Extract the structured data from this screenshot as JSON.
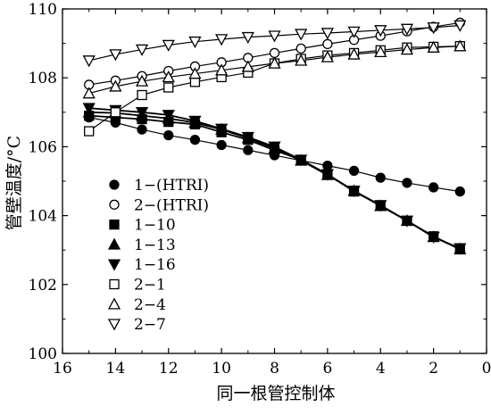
{
  "chart_data": {
    "type": "line",
    "title": "",
    "xlabel": "同一根管控制体",
    "ylabel": "管壁温度/°C",
    "xlim": [
      16,
      0
    ],
    "x_reversed": true,
    "ylim": [
      100,
      110
    ],
    "xticks": [
      16,
      14,
      12,
      10,
      8,
      6,
      4,
      2,
      0
    ],
    "yticks": [
      100,
      102,
      104,
      106,
      108,
      110
    ],
    "grid": false,
    "legend_position": "left-middle",
    "x": [
      15,
      14,
      13,
      12,
      11,
      10,
      9,
      8,
      7,
      6,
      5,
      4,
      3,
      2,
      1
    ],
    "series": [
      {
        "name": "1−(HTRI)",
        "marker": "filled-circle",
        "values": [
          106.85,
          106.7,
          106.5,
          106.33,
          106.2,
          106.05,
          105.9,
          105.75,
          105.6,
          105.45,
          105.3,
          105.1,
          104.95,
          104.82,
          104.7
        ]
      },
      {
        "name": "2−(HTRI)",
        "marker": "open-circle",
        "values": [
          107.8,
          107.92,
          108.05,
          108.2,
          108.33,
          108.45,
          108.58,
          108.72,
          108.85,
          108.98,
          109.1,
          109.22,
          109.35,
          109.48,
          109.6
        ]
      },
      {
        "name": "1−10",
        "marker": "filled-square",
        "values": [
          106.9,
          106.85,
          106.8,
          106.72,
          106.65,
          106.42,
          106.2,
          105.9,
          105.62,
          105.2,
          104.7,
          104.3,
          103.85,
          103.4,
          103.02
        ]
      },
      {
        "name": "1−13",
        "marker": "filled-triangle-up",
        "values": [
          107.0,
          106.98,
          106.9,
          106.82,
          106.7,
          106.5,
          106.25,
          105.95,
          105.6,
          105.18,
          104.72,
          104.28,
          103.85,
          103.38,
          103.03
        ]
      },
      {
        "name": "1−16",
        "marker": "filled-triangle-down",
        "values": [
          107.12,
          107.06,
          107.0,
          106.92,
          106.75,
          106.52,
          106.28,
          106.0,
          105.62,
          105.2,
          104.72,
          104.3,
          103.85,
          103.38,
          103.05
        ]
      },
      {
        "name": "2−1",
        "marker": "open-square",
        "values": [
          106.45,
          107.0,
          107.5,
          107.72,
          107.88,
          108.02,
          108.15,
          108.42,
          108.55,
          108.65,
          108.72,
          108.8,
          108.88,
          108.9,
          108.92
        ]
      },
      {
        "name": "2−4",
        "marker": "open-triangle-up",
        "values": [
          107.55,
          107.75,
          107.9,
          108.02,
          108.12,
          108.22,
          108.32,
          108.42,
          108.5,
          108.6,
          108.68,
          108.75,
          108.82,
          108.88,
          108.92
        ]
      },
      {
        "name": "2−7",
        "marker": "open-triangle-down",
        "values": [
          108.5,
          108.68,
          108.82,
          108.95,
          109.05,
          109.12,
          109.18,
          109.22,
          109.27,
          109.3,
          109.34,
          109.38,
          109.42,
          109.46,
          109.52
        ]
      }
    ]
  }
}
